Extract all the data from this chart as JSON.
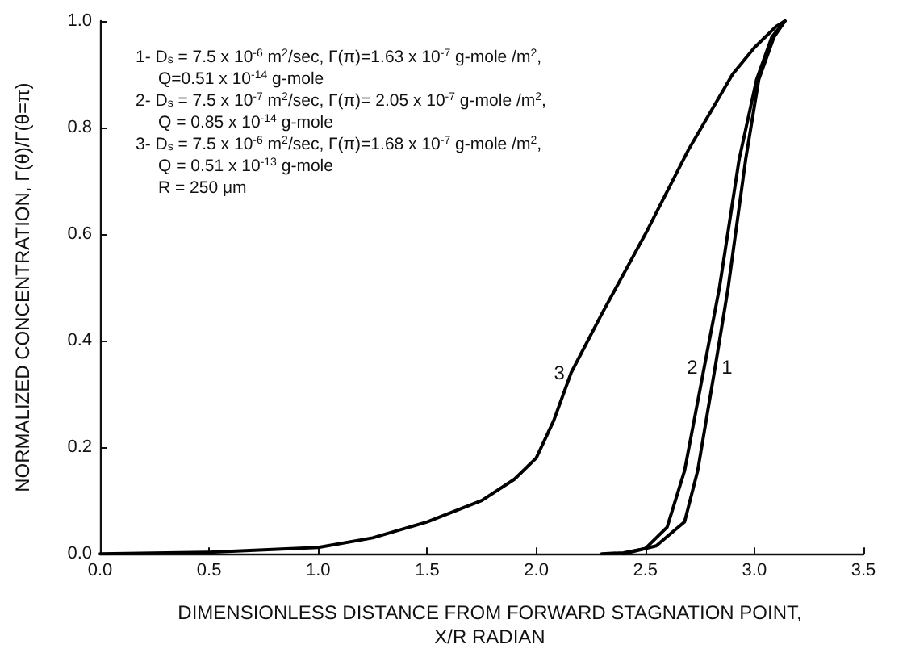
{
  "chart_data": {
    "type": "line",
    "xlabel": "DIMENSIONLESS DISTANCE FROM FORWARD STAGNATION POINT,\nX/R RADIAN",
    "ylabel": "NORMALIZED CONCENTRATION, Γ(θ)/Γ(θ=π)",
    "xlim": [
      0,
      3.5
    ],
    "ylim": [
      0,
      1.0
    ],
    "xticks": [
      {
        "value": 0,
        "label": "0.0"
      },
      0.5,
      {
        "value": 1,
        "label": "1.0"
      },
      1.5,
      {
        "value": 2,
        "label": "2.0"
      },
      2.5,
      {
        "value": 3,
        "label": "3.0"
      },
      3.5
    ],
    "yticks": [
      {
        "value": 0,
        "label": "0.0"
      },
      0.2,
      0.4,
      0.6,
      0.8,
      {
        "value": 1,
        "label": "1.0"
      }
    ],
    "grid": false,
    "legend": false,
    "marker": "none",
    "line_style": "solid",
    "series": [
      {
        "name": "1",
        "color": "#000000",
        "x": [
          2.4,
          2.55,
          2.68,
          2.74,
          2.82,
          2.88,
          2.96,
          3.02,
          3.09,
          3.14
        ],
        "values": [
          0,
          0.015,
          0.06,
          0.156,
          0.35,
          0.5,
          0.74,
          0.89,
          0.97,
          1.0
        ]
      },
      {
        "name": "2",
        "color": "#000000",
        "x": [
          2.3,
          2.4,
          2.5,
          2.6,
          2.68,
          2.77,
          2.84,
          2.93,
          3.01,
          3.08,
          3.14
        ],
        "values": [
          0,
          0.002,
          0.01,
          0.05,
          0.156,
          0.35,
          0.5,
          0.74,
          0.89,
          0.97,
          1.0
        ]
      },
      {
        "name": "3",
        "color": "#000000",
        "x": [
          0,
          0.5,
          1.0,
          1.25,
          1.5,
          1.75,
          1.9,
          2.0,
          2.08,
          2.16,
          2.3,
          2.5,
          2.7,
          2.9,
          3.0,
          3.1,
          3.14
        ],
        "values": [
          0,
          0.003,
          0.012,
          0.03,
          0.06,
          0.1,
          0.14,
          0.18,
          0.25,
          0.34,
          0.45,
          0.6,
          0.76,
          0.9,
          0.95,
          0.99,
          1.0
        ]
      }
    ],
    "annotations": [
      "1- D$_{s}$ = 7.5 x 10$^{-6}$ m$^{2}$/sec, Γ(π)=1.63 x 10$^{-7}$ g-mole /m$^{2}$,",
      "Q=0.51 x 10$^{-14}$ g-mole",
      "2- D$_{s}$ = 7.5 x 10$^{-7}$ m$^{2}$/sec, Γ(π)= 2.05 x 10$^{-7}$ g-mole /m$^{2}$,",
      "Q = 0.85 x 10$^{-14}$ g-mole",
      "3- D$_{s}$ = 7.5 x 10$^{-6}$ m$^{2}$/sec, Γ(π)=1.68 x 10$^{-7}$ g-mole /m$^{2}$,",
      "Q = 0.51 x 10$^{-13}$ g-mole",
      "R = 250 μm"
    ]
  }
}
